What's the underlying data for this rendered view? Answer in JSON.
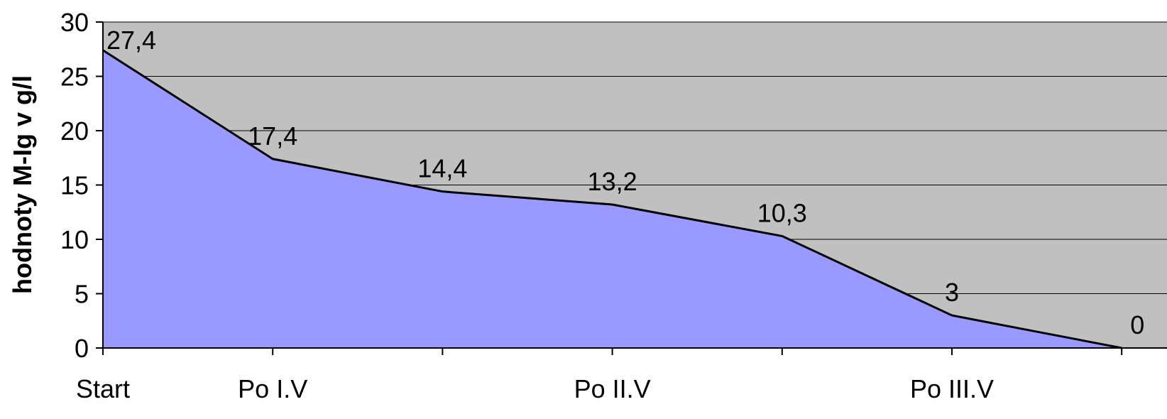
{
  "chart_data": {
    "type": "area",
    "title": "",
    "xlabel": "",
    "ylabel": "hodnoty M-Ig v g/l",
    "ylim": [
      0,
      30
    ],
    "yticks": [
      0,
      5,
      10,
      15,
      20,
      25,
      30
    ],
    "grid": true,
    "categories": [
      "Start",
      "Po I.V",
      "",
      "Po II.V",
      "",
      "Po III.V",
      ""
    ],
    "series": [
      {
        "values": [
          27.4,
          17.4,
          14.4,
          13.2,
          10.3,
          3,
          0
        ],
        "labels": [
          "27,4",
          "17,4",
          "14,4",
          "13,2",
          "10,3",
          "3",
          "0"
        ]
      }
    ],
    "colors": {
      "plot_background": "#c0c0c0",
      "area_fill": "#9999ff",
      "line": "#000000",
      "gridline": "#000000"
    }
  }
}
